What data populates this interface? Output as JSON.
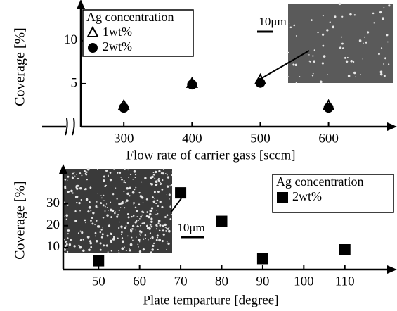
{
  "chart_data": [
    {
      "type": "scatter",
      "x_label": "Flow rate of carrier gass  [sccm]",
      "y_label": "Coverage [%]",
      "legend_title": "Ag concentration",
      "legend": "upper left",
      "annotations": [
        "10μm"
      ],
      "series": [
        {
          "name": "1wt%",
          "marker": "triangle",
          "color": "#000000",
          "x": [
            300,
            400,
            500,
            600
          ],
          "values": [
            2.4,
            5,
            5.4,
            2.4
          ]
        },
        {
          "name": "2wt%",
          "marker": "circle",
          "color": "#000000",
          "x": [
            300,
            400,
            500,
            600
          ],
          "values": [
            2.2,
            4.9,
            5.1,
            2.2
          ]
        }
      ],
      "xlim": [
        237,
        690
      ],
      "ylim": [
        0,
        14
      ],
      "xticks": [
        300,
        400,
        500,
        600
      ],
      "yticks": [
        5,
        10
      ]
    },
    {
      "type": "scatter",
      "x_label": "Plate temparture [degree]",
      "y_label": "Coverage [%]",
      "legend_title": "Ag concentration",
      "legend": "upper right",
      "annotations": [
        "10μm"
      ],
      "series": [
        {
          "name": "2wt%",
          "marker": "square",
          "color": "#000000",
          "x": [
            50,
            70,
            80,
            90,
            110
          ],
          "values": [
            4,
            35,
            22,
            5,
            9
          ]
        }
      ],
      "xlim": [
        41.4,
        121
      ],
      "ylim": [
        0,
        45
      ],
      "xticks": [
        50,
        60,
        70,
        80,
        90,
        100,
        110
      ],
      "yticks": [
        10,
        20,
        30
      ]
    }
  ]
}
